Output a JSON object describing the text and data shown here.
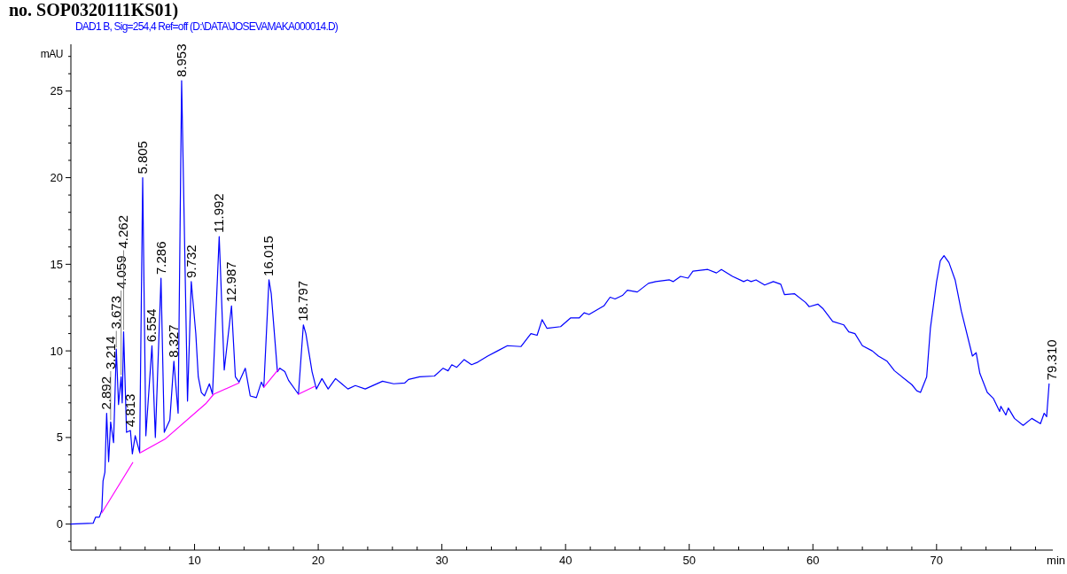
{
  "chart_data": {
    "type": "line",
    "title": "no. SOP0320111KS01)",
    "subtitle": "DAD1 B, Sig=254,4 Ref=off (D:\\DATA\\JOSEVAMAKA000014.D)",
    "ylabel": "mAU",
    "xlabel": "min",
    "xlim": [
      0,
      79.4
    ],
    "ylim": [
      -1.5,
      27.7
    ],
    "xticks": [
      {
        "value": 2,
        "label": null
      },
      {
        "value": 4,
        "label": null
      },
      {
        "value": 6,
        "label": null
      },
      {
        "value": 8,
        "label": null
      },
      10,
      {
        "value": 12,
        "label": null
      },
      {
        "value": 14,
        "label": null
      },
      {
        "value": 16,
        "label": null
      },
      {
        "value": 18,
        "label": null
      },
      20,
      {
        "value": 22,
        "label": null
      },
      {
        "value": 24,
        "label": null
      },
      {
        "value": 26,
        "label": null
      },
      {
        "value": 28,
        "label": null
      },
      30,
      {
        "value": 32,
        "label": null
      },
      {
        "value": 34,
        "label": null
      },
      {
        "value": 36,
        "label": null
      },
      {
        "value": 38,
        "label": null
      },
      40,
      {
        "value": 42,
        "label": null
      },
      {
        "value": 44,
        "label": null
      },
      {
        "value": 46,
        "label": null
      },
      {
        "value": 48,
        "label": null
      },
      50,
      {
        "value": 52,
        "label": null
      },
      {
        "value": 54,
        "label": null
      },
      {
        "value": 56,
        "label": null
      },
      {
        "value": 58,
        "label": null
      },
      60,
      {
        "value": 62,
        "label": null
      },
      {
        "value": 64,
        "label": null
      },
      {
        "value": 66,
        "label": null
      },
      {
        "value": 68,
        "label": null
      },
      70,
      {
        "value": 72,
        "label": null
      },
      {
        "value": 74,
        "label": null
      },
      {
        "value": 76,
        "label": null
      },
      {
        "value": 78,
        "label": null
      }
    ],
    "yticks": [
      {
        "value": -1,
        "label": null
      },
      0,
      {
        "value": 1,
        "label": null
      },
      {
        "value": 2,
        "label": null
      },
      {
        "value": 3,
        "label": null
      },
      {
        "value": 4,
        "label": null
      },
      5,
      {
        "value": 6,
        "label": null
      },
      {
        "value": 7,
        "label": null
      },
      {
        "value": 8,
        "label": null
      },
      {
        "value": 9,
        "label": null
      },
      10,
      {
        "value": 11,
        "label": null
      },
      {
        "value": 12,
        "label": null
      },
      {
        "value": 13,
        "label": null
      },
      {
        "value": 14,
        "label": null
      },
      15,
      {
        "value": 16,
        "label": null
      },
      {
        "value": 17,
        "label": null
      },
      {
        "value": 18,
        "label": null
      },
      {
        "value": 19,
        "label": null
      },
      20,
      {
        "value": 21,
        "label": null
      },
      {
        "value": 22,
        "label": null
      },
      {
        "value": 23,
        "label": null
      },
      {
        "value": 24,
        "label": null
      },
      25,
      {
        "value": 26,
        "label": null
      },
      {
        "value": 27,
        "label": null
      }
    ],
    "grid": false,
    "series": [
      {
        "color": "#0000ff",
        "x": [
          0,
          1.8,
          2.0,
          2.3,
          2.5,
          2.6,
          2.75,
          2.892,
          3.05,
          3.214,
          3.45,
          3.673,
          3.85,
          4.059,
          4.15,
          4.262,
          4.5,
          4.813,
          4.97,
          5.2,
          5.56,
          5.805,
          6.06,
          6.554,
          6.83,
          7.286,
          7.55,
          8.0,
          8.327,
          8.67,
          8.953,
          9.43,
          9.732,
          10.1,
          10.3,
          10.55,
          10.8,
          11.2,
          11.45,
          11.992,
          12.4,
          12.987,
          13.3,
          13.6,
          14.1,
          14.5,
          15.0,
          15.4,
          15.6,
          16.015,
          16.2,
          16.7,
          16.9,
          17.3,
          17.6,
          18.4,
          18.797,
          19.0,
          19.5,
          19.85,
          20.3,
          20.8,
          21.4,
          21.9,
          22.4,
          23.0,
          23.8,
          25.2,
          26.1,
          27.0,
          27.3,
          28.2,
          29.4,
          30.1,
          30.5,
          30.8,
          31.2,
          31.8,
          32.4,
          32.9,
          33.7,
          34.5,
          35.3,
          36.4,
          37.2,
          37.7,
          38.1,
          38.5,
          39.6,
          40.4,
          41.1,
          41.5,
          41.9,
          43.1,
          43.6,
          44.0,
          44.6,
          45.0,
          45.8,
          46.7,
          47.3,
          48.4,
          48.7,
          49.3,
          49.9,
          50.3,
          51.5,
          52.2,
          52.6,
          53.5,
          54.4,
          54.7,
          55.0,
          55.4,
          56.1,
          56.8,
          57.4,
          57.7,
          58.5,
          59.4,
          59.7,
          60.4,
          60.8,
          61.6,
          62.5,
          62.9,
          63.4,
          64.0,
          64.8,
          65.3,
          66.0,
          66.6,
          68.0,
          68.4,
          68.7,
          69.2,
          69.5,
          70.0,
          70.3,
          70.6,
          71.0,
          71.5,
          72.0,
          72.9,
          73.2,
          73.5,
          74.1,
          74.6,
          75.1,
          75.2,
          75.6,
          75.8,
          76.3,
          77.0,
          77.7,
          78.4,
          78.7,
          78.9,
          79.1
        ],
        "values": [
          0,
          0.05,
          0.4,
          0.4,
          0.8,
          2.5,
          3.0,
          6.4,
          3.6,
          5.9,
          4.7,
          10.1,
          6.9,
          8.5,
          7.0,
          11.1,
          5.3,
          5.4,
          4.05,
          5.1,
          4.15,
          20.0,
          5.1,
          10.3,
          5.0,
          14.2,
          5.3,
          6.0,
          9.4,
          6.4,
          25.6,
          7.1,
          14.0,
          11.0,
          8.5,
          7.6,
          7.4,
          8.1,
          7.5,
          16.6,
          8.9,
          12.6,
          8.5,
          8.2,
          9.0,
          7.4,
          7.3,
          8.2,
          7.9,
          14.1,
          13.3,
          8.8,
          9.0,
          8.8,
          8.3,
          7.5,
          11.5,
          11.0,
          8.8,
          7.8,
          8.4,
          7.8,
          8.4,
          8.1,
          7.8,
          8.0,
          7.8,
          8.25,
          8.1,
          8.15,
          8.35,
          8.5,
          8.55,
          9.0,
          8.85,
          9.2,
          9.05,
          9.5,
          9.2,
          9.35,
          9.7,
          10.0,
          10.3,
          10.25,
          11.0,
          10.9,
          11.8,
          11.3,
          11.4,
          11.9,
          11.9,
          12.2,
          12.1,
          12.6,
          13.1,
          13.0,
          13.2,
          13.5,
          13.4,
          13.9,
          14.0,
          14.1,
          14.0,
          14.3,
          14.2,
          14.6,
          14.7,
          14.5,
          14.7,
          14.3,
          14.0,
          14.1,
          14.0,
          14.1,
          13.8,
          14.0,
          13.85,
          13.25,
          13.3,
          12.8,
          12.55,
          12.7,
          12.45,
          11.7,
          11.5,
          11.1,
          11.0,
          10.3,
          10.0,
          9.7,
          9.4,
          8.85,
          8.05,
          7.7,
          7.6,
          8.5,
          11.3,
          14.0,
          15.2,
          15.5,
          15.1,
          14.1,
          12.3,
          9.7,
          9.9,
          8.7,
          7.6,
          7.25,
          6.5,
          6.8,
          6.3,
          6.7,
          6.1,
          5.7,
          6.1,
          5.8,
          6.4,
          6.2,
          8.1
        ]
      },
      {
        "color": "#ff00ff",
        "x": [
          2.5,
          5.0,
          5.3,
          5.56,
          7.6,
          10.9,
          11.55,
          13.6,
          14.6,
          15.6,
          16.8,
          17.6,
          18.4,
          19.7
        ],
        "values": [
          0.65,
          3.55,
          null,
          4.1,
          4.9,
          6.95,
          7.5,
          8.15,
          null,
          7.9,
          8.95,
          null,
          7.5,
          7.95
        ]
      }
    ],
    "annotations": [
      {
        "text": "2.892",
        "x": 2.892,
        "y": 6.4
      },
      {
        "text": "3.214",
        "x": 3.214,
        "y": 5.9
      },
      {
        "text": "3.673",
        "x": 3.673,
        "y": 10.1
      },
      {
        "text": "4.059",
        "x": 4.059,
        "y": 8.5
      },
      {
        "text": "4.262",
        "x": 4.262,
        "y": 11.1
      },
      {
        "text": "4.813",
        "x": 4.813,
        "y": 5.4
      },
      {
        "text": "5.805",
        "x": 5.805,
        "y": 20.0
      },
      {
        "text": "6.554",
        "x": 6.554,
        "y": 10.3
      },
      {
        "text": "7.286",
        "x": 7.286,
        "y": 14.2
      },
      {
        "text": "8.327",
        "x": 8.327,
        "y": 9.4
      },
      {
        "text": "8.953",
        "x": 8.953,
        "y": 25.6
      },
      {
        "text": "9.732",
        "x": 9.732,
        "y": 14.0
      },
      {
        "text": "11.992",
        "x": 11.992,
        "y": 16.6
      },
      {
        "text": "12.987",
        "x": 12.987,
        "y": 12.6
      },
      {
        "text": "16.015",
        "x": 16.015,
        "y": 14.1
      },
      {
        "text": "18.797",
        "x": 18.797,
        "y": 11.5
      },
      {
        "text": "79.310",
        "x": 79.31,
        "y": 8.1
      }
    ]
  }
}
